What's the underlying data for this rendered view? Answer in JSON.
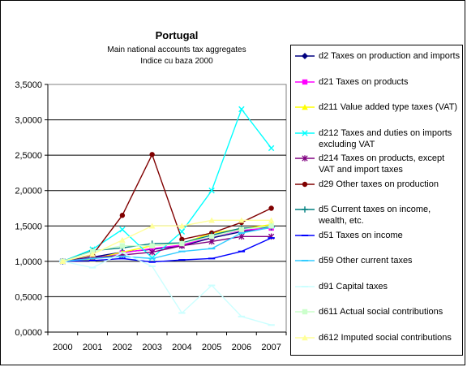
{
  "chart_data": {
    "type": "line",
    "title": "Portugal",
    "subtitle_lines": [
      "Main national accounts tax aggregates",
      "Indice cu baza 2000"
    ],
    "categories": [
      "2000",
      "2001",
      "2002",
      "2003",
      "2004",
      "2005",
      "2006",
      "2007"
    ],
    "y_ticks": [
      "0,0000",
      "0,5000",
      "1,0000",
      "1,5000",
      "2,0000",
      "2,5000",
      "3,0000",
      "3,5000"
    ],
    "ylim": [
      0,
      3.5
    ],
    "grid": true,
    "legend_position": "right",
    "series": [
      {
        "name": "d2 Taxes on production and imports",
        "color": "#000080",
        "marker": "diamond",
        "values": [
          1.0,
          1.06,
          1.13,
          1.17,
          1.22,
          1.33,
          1.42,
          1.48
        ]
      },
      {
        "name": "d21 Taxes on products",
        "color": "#FF00FF",
        "marker": "square",
        "values": [
          1.0,
          1.04,
          1.12,
          1.18,
          1.23,
          1.35,
          1.44,
          1.47
        ]
      },
      {
        "name": "d211 Value added type taxes (VAT)",
        "color": "#FFFF00",
        "marker": "triangle",
        "values": [
          1.0,
          1.03,
          1.13,
          1.22,
          1.25,
          1.4,
          1.46,
          1.52
        ]
      },
      {
        "name": "d212 Taxes and duties on imports excluding VAT",
        "color": "#00FFFF",
        "marker": "x",
        "values": [
          1.0,
          1.17,
          1.45,
          1.05,
          1.42,
          2.0,
          3.15,
          2.6
        ]
      },
      {
        "name": "d214 Taxes on products, except VAT and import taxes",
        "color": "#800080",
        "marker": "star",
        "values": [
          1.0,
          1.05,
          1.09,
          1.13,
          1.22,
          1.28,
          1.35,
          1.35
        ]
      },
      {
        "name": "d29 Other taxes on production",
        "color": "#800000",
        "marker": "circle",
        "values": [
          1.0,
          1.09,
          1.65,
          2.51,
          1.31,
          1.4,
          1.55,
          1.75
        ]
      },
      {
        "name": "d5 Current taxes on income, wealth, etc.",
        "color": "#008080",
        "marker": "plus",
        "values": [
          1.0,
          1.15,
          1.19,
          1.25,
          1.26,
          1.37,
          1.47,
          1.48
        ]
      },
      {
        "name": "d51 Taxes on income",
        "color": "#0000FF",
        "marker": "dash",
        "values": [
          1.0,
          1.01,
          1.04,
          0.99,
          1.02,
          1.04,
          1.14,
          1.33
        ]
      },
      {
        "name": "d59 Other current taxes",
        "color": "#33CCFF",
        "marker": "dash",
        "values": [
          1.0,
          1.04,
          1.07,
          1.04,
          1.14,
          1.18,
          1.4,
          1.48
        ]
      },
      {
        "name": "d91 Capital taxes",
        "color": "#CCFFFF",
        "marker": "dash",
        "values": [
          1.0,
          0.91,
          1.12,
          0.93,
          0.27,
          0.66,
          0.22,
          0.1
        ]
      },
      {
        "name": "d611 Actual social contributions",
        "color": "#CCFFCC",
        "marker": "square",
        "values": [
          1.0,
          1.14,
          1.22,
          1.22,
          1.25,
          1.35,
          1.45,
          1.5
        ]
      },
      {
        "name": "d612 Imputed social contributions",
        "color": "#FFFF99",
        "marker": "triangle",
        "values": [
          1.0,
          1.1,
          1.3,
          1.5,
          1.5,
          1.58,
          1.58,
          1.58
        ]
      }
    ]
  }
}
